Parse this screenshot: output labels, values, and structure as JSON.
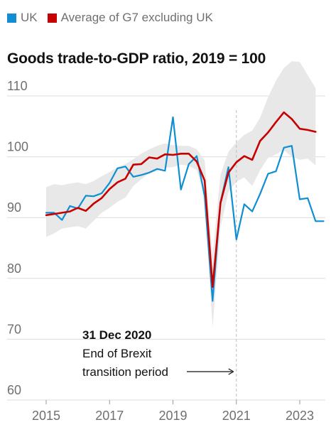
{
  "legend": [
    {
      "label": "UK",
      "color": "#0f8fd1"
    },
    {
      "label": "Average of G7 excluding UK",
      "color": "#c70000"
    }
  ],
  "chart_data": {
    "type": "line",
    "title": "Goods trade-to-GDP ratio, 2019 = 100",
    "xlabel": "",
    "ylabel": "",
    "ylim": [
      60,
      110
    ],
    "xlim": [
      2014.9,
      2023.85
    ],
    "yticks": [
      60,
      70,
      80,
      90,
      100,
      110
    ],
    "xticks": [
      2015,
      2017,
      2019,
      2021,
      2023
    ],
    "grid": true,
    "legend_position": "top-left",
    "series": [
      {
        "name": "UK",
        "color": "#0f8fd1",
        "x": [
          2015.0,
          2015.25,
          2015.5,
          2015.75,
          2016.0,
          2016.25,
          2016.5,
          2016.75,
          2017.0,
          2017.25,
          2017.5,
          2017.75,
          2018.0,
          2018.25,
          2018.5,
          2018.75,
          2019.0,
          2019.25,
          2019.5,
          2019.75,
          2020.0,
          2020.25,
          2020.5,
          2020.75,
          2021.0,
          2021.25,
          2021.5,
          2021.75,
          2022.0,
          2022.25,
          2022.5,
          2022.75,
          2023.0,
          2023.25,
          2023.5,
          2023.75
        ],
        "values": [
          90.8,
          90.8,
          89.6,
          91.9,
          91.5,
          93.6,
          93.5,
          94.0,
          95.7,
          98.1,
          98.4,
          96.7,
          97.0,
          97.4,
          98.0,
          97.7,
          106.5,
          94.6,
          98.8,
          100.1,
          93.5,
          76.3,
          92.5,
          98.3,
          86.4,
          92.2,
          91.0,
          93.9,
          97.2,
          97.6,
          101.5,
          101.8,
          93.0,
          93.2,
          89.4,
          89.4
        ]
      },
      {
        "name": "Average of G7 excluding UK",
        "color": "#c70000",
        "x": [
          2015.0,
          2015.25,
          2015.5,
          2015.75,
          2016.0,
          2016.25,
          2016.5,
          2016.75,
          2017.0,
          2017.25,
          2017.5,
          2017.75,
          2018.0,
          2018.25,
          2018.5,
          2018.75,
          2019.0,
          2019.25,
          2019.5,
          2019.75,
          2020.0,
          2020.25,
          2020.5,
          2020.75,
          2021.0,
          2021.25,
          2021.5,
          2021.75,
          2022.0,
          2022.25,
          2022.5,
          2022.75,
          2023.0,
          2023.25,
          2023.5
        ],
        "values": [
          90.4,
          90.6,
          90.8,
          91.0,
          91.6,
          91.1,
          92.3,
          93.2,
          94.7,
          95.8,
          96.4,
          98.7,
          98.8,
          99.9,
          99.7,
          100.4,
          100.3,
          100.5,
          100.5,
          99.2,
          96.1,
          78.6,
          92.4,
          97.4,
          99.1,
          100.1,
          99.5,
          102.6,
          104.0,
          105.7,
          107.3,
          106.2,
          104.6,
          104.4,
          104.1
        ]
      }
    ],
    "range_band": {
      "x": [
        2015.0,
        2015.25,
        2015.5,
        2015.75,
        2016.0,
        2016.25,
        2016.5,
        2016.75,
        2017.0,
        2017.25,
        2017.5,
        2017.75,
        2018.0,
        2018.25,
        2018.5,
        2018.75,
        2019.0,
        2019.25,
        2019.5,
        2019.75,
        2020.0,
        2020.25,
        2020.5,
        2020.75,
        2021.0,
        2021.25,
        2021.5,
        2021.75,
        2022.0,
        2022.25,
        2022.5,
        2022.75,
        2023.0,
        2023.25,
        2023.5
      ],
      "upper": [
        95.0,
        95.5,
        95.3,
        95.6,
        95.8,
        95.5,
        96.0,
        96.8,
        97.5,
        98.3,
        98.8,
        99.6,
        100.5,
        101.2,
        101.8,
        102.2,
        101.9,
        101.8,
        101.8,
        101.2,
        99.4,
        83.8,
        97.0,
        100.8,
        102.4,
        103.6,
        104.3,
        106.4,
        109.8,
        112.5,
        114.6,
        115.7,
        115.6,
        113.4,
        111.3
      ],
      "lower": [
        86.8,
        87.4,
        88.2,
        88.4,
        88.6,
        88.2,
        89.5,
        90.8,
        91.6,
        92.6,
        93.3,
        95.2,
        96.3,
        97.3,
        97.6,
        98.2,
        98.3,
        98.7,
        98.5,
        97.8,
        93.5,
        71.9,
        88.4,
        94.2,
        95.9,
        96.6,
        95.2,
        97.8,
        99.8,
        100.4,
        101.1,
        100.0,
        99.5,
        99.7,
        98.6
      ]
    },
    "annotations": [
      {
        "x": 2021.0,
        "title": "31 Dec 2020",
        "lines": [
          "End of Brexit",
          "transition period"
        ]
      }
    ]
  }
}
